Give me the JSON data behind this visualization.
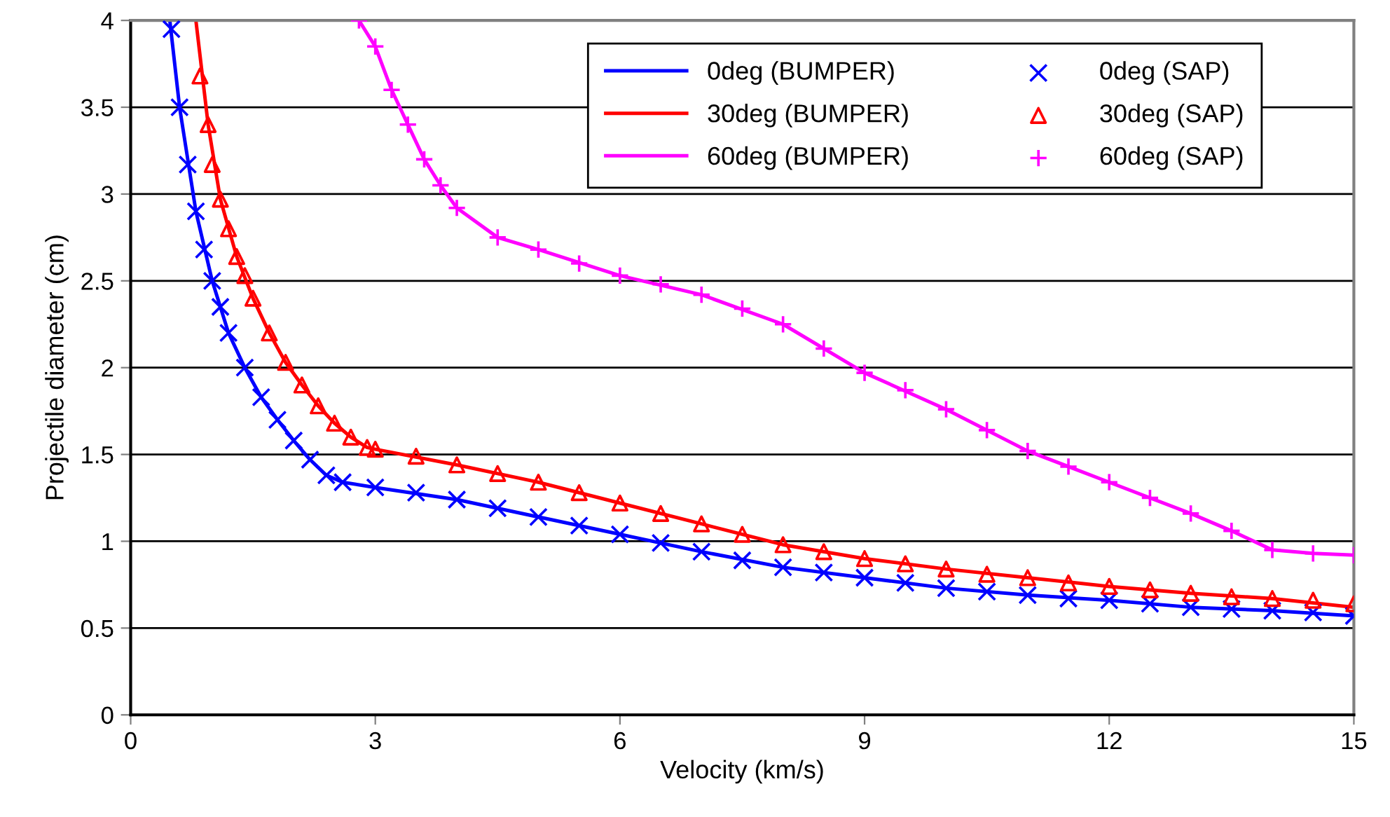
{
  "chart_data": {
    "type": "line",
    "xlabel": "Velocity (km/s)",
    "ylabel": "Projectile diameter (cm)",
    "xlim": [
      0,
      15
    ],
    "ylim": [
      0,
      4
    ],
    "xticks": [
      0,
      3,
      6,
      9,
      12,
      15
    ],
    "yticks": [
      0,
      0.5,
      1,
      1.5,
      2,
      2.5,
      3,
      3.5,
      4
    ],
    "grid": "y",
    "legend": "top right",
    "series": [
      {
        "name": "0deg (BUMPER)",
        "color": "#0000ff",
        "marker": "none",
        "x": [
          0.48,
          0.6,
          0.8,
          1.0,
          1.2,
          1.4,
          1.6,
          1.8,
          2.0,
          2.2,
          2.4,
          2.6,
          3,
          4,
          5,
          6,
          7,
          8,
          9,
          10,
          11,
          12,
          13,
          14,
          15
        ],
        "values": [
          4.0,
          3.5,
          2.9,
          2.5,
          2.2,
          2.0,
          1.83,
          1.7,
          1.58,
          1.47,
          1.38,
          1.34,
          1.31,
          1.24,
          1.14,
          1.04,
          0.94,
          0.85,
          0.79,
          0.73,
          0.69,
          0.66,
          0.62,
          0.6,
          0.57
        ]
      },
      {
        "name": "30deg (BUMPER)",
        "color": "#ff0000",
        "marker": "none",
        "x": [
          0.8,
          0.95,
          1.1,
          1.3,
          1.5,
          1.7,
          1.9,
          2.1,
          2.3,
          2.5,
          2.7,
          2.9,
          3,
          4,
          5,
          6,
          7,
          8,
          9,
          10,
          11,
          12,
          13,
          14,
          15
        ],
        "values": [
          4.0,
          3.4,
          2.97,
          2.64,
          2.4,
          2.2,
          2.03,
          1.9,
          1.78,
          1.68,
          1.6,
          1.54,
          1.53,
          1.44,
          1.34,
          1.22,
          1.1,
          0.98,
          0.9,
          0.84,
          0.79,
          0.74,
          0.7,
          0.67,
          0.62
        ]
      },
      {
        "name": "60deg (BUMPER)",
        "color": "#ff00ff",
        "marker": "none",
        "x": [
          2.8,
          3.0,
          3.2,
          3.4,
          3.6,
          3.8,
          4,
          4.5,
          5,
          6,
          7,
          8,
          9,
          10,
          11,
          12,
          13,
          13.5,
          14,
          14.5,
          15
        ],
        "values": [
          4.0,
          3.85,
          3.6,
          3.4,
          3.2,
          3.05,
          2.92,
          2.75,
          2.68,
          2.53,
          2.42,
          2.25,
          1.97,
          1.76,
          1.52,
          1.34,
          1.16,
          1.06,
          0.95,
          0.93,
          0.92
        ]
      },
      {
        "name": "0deg (SAP)",
        "type": "scatter",
        "color": "#0000ff",
        "marker": "cross",
        "x": [
          0.5,
          0.6,
          0.7,
          0.8,
          0.9,
          1.0,
          1.1,
          1.2,
          1.4,
          1.6,
          1.8,
          2.0,
          2.2,
          2.4,
          2.6,
          3,
          3.5,
          4,
          4.5,
          5,
          5.5,
          6,
          6.5,
          7,
          7.5,
          8,
          8.5,
          9,
          9.5,
          10,
          10.5,
          11,
          11.5,
          12,
          12.5,
          13,
          13.5,
          14,
          14.5,
          15
        ],
        "values": [
          3.95,
          3.5,
          3.17,
          2.9,
          2.68,
          2.5,
          2.35,
          2.2,
          2.0,
          1.83,
          1.7,
          1.58,
          1.47,
          1.38,
          1.34,
          1.31,
          1.28,
          1.24,
          1.19,
          1.14,
          1.09,
          1.04,
          0.99,
          0.94,
          0.89,
          0.85,
          0.82,
          0.79,
          0.76,
          0.73,
          0.71,
          0.69,
          0.67,
          0.66,
          0.64,
          0.62,
          0.61,
          0.6,
          0.59,
          0.57
        ]
      },
      {
        "name": "30deg (SAP)",
        "type": "scatter",
        "color": "#ff0000",
        "marker": "triangle",
        "x": [
          0.85,
          0.95,
          1.0,
          1.1,
          1.2,
          1.3,
          1.4,
          1.5,
          1.7,
          1.9,
          2.1,
          2.3,
          2.5,
          2.7,
          2.9,
          3,
          3.5,
          4,
          4.5,
          5,
          5.5,
          6,
          6.5,
          7,
          7.5,
          8,
          8.5,
          9,
          9.5,
          10,
          10.5,
          11,
          11.5,
          12,
          12.5,
          13,
          13.5,
          14,
          14.5,
          15
        ],
        "values": [
          3.68,
          3.4,
          3.17,
          2.97,
          2.8,
          2.64,
          2.53,
          2.4,
          2.2,
          2.03,
          1.9,
          1.78,
          1.68,
          1.6,
          1.54,
          1.53,
          1.49,
          1.44,
          1.39,
          1.34,
          1.28,
          1.22,
          1.16,
          1.1,
          1.04,
          0.98,
          0.94,
          0.9,
          0.87,
          0.84,
          0.81,
          0.79,
          0.76,
          0.74,
          0.72,
          0.7,
          0.68,
          0.67,
          0.66,
          0.64
        ]
      },
      {
        "name": "60deg (SAP)",
        "type": "scatter",
        "color": "#ff00ff",
        "marker": "plus",
        "x": [
          2.8,
          3.0,
          3.2,
          3.4,
          3.6,
          3.8,
          4,
          4.5,
          5,
          5.5,
          6,
          6.5,
          7,
          7.5,
          8,
          8.5,
          9,
          9.5,
          10,
          10.5,
          11,
          11.5,
          12,
          12.5,
          13,
          13.5,
          14,
          14.5,
          15
        ],
        "values": [
          4.0,
          3.85,
          3.6,
          3.4,
          3.2,
          3.05,
          2.92,
          2.75,
          2.68,
          2.6,
          2.53,
          2.48,
          2.42,
          2.34,
          2.25,
          2.11,
          1.97,
          1.87,
          1.76,
          1.64,
          1.52,
          1.43,
          1.34,
          1.25,
          1.16,
          1.06,
          0.95,
          0.93,
          0.92
        ]
      }
    ]
  }
}
